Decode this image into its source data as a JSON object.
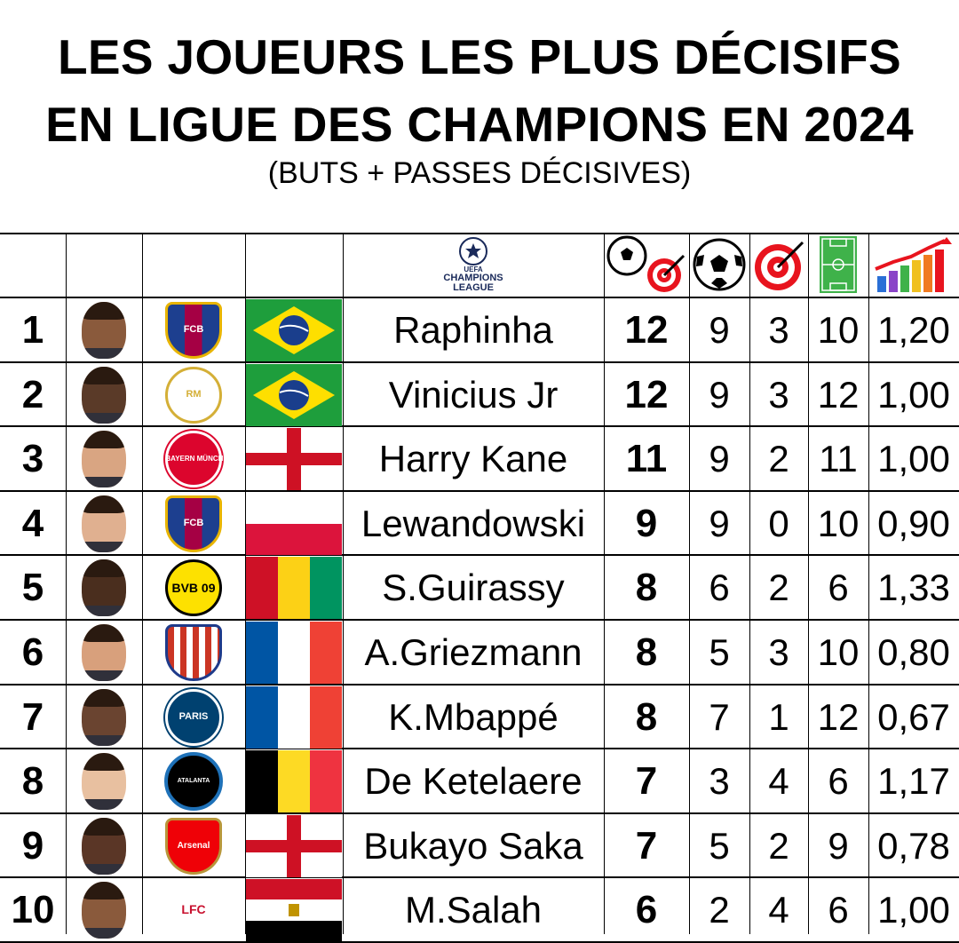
{
  "title": {
    "line1": "LES JOUEURS LES PLUS DÉCISIFS",
    "line2": "EN LIGUE DES CHAMPIONS EN 2024",
    "subtitle": "(BUTS + PASSES DÉCISIVES)"
  },
  "header": {
    "logo_line1": "CHAMPIONS",
    "logo_line2": "LEAGUE",
    "logo_small": "UEFA",
    "col_icons": [
      "ball-target-icon",
      "ball-icon",
      "target-icon",
      "pitch-icon",
      "bar-chart-icon"
    ]
  },
  "rows": [
    {
      "rank": "1",
      "player": "Raphinha",
      "ga": "12",
      "goals": "9",
      "assists": "3",
      "matches": "10",
      "ratio": "1,20",
      "club": "fc-barcelona",
      "club_text": "FCB",
      "flag": "brazil"
    },
    {
      "rank": "2",
      "player": "Vinicius Jr",
      "ga": "12",
      "goals": "9",
      "assists": "3",
      "matches": "12",
      "ratio": "1,00",
      "club": "real-madrid",
      "club_text": "RM",
      "flag": "brazil"
    },
    {
      "rank": "3",
      "player": "Harry Kane",
      "ga": "11",
      "goals": "9",
      "assists": "2",
      "matches": "11",
      "ratio": "1,00",
      "club": "bayern-munchen",
      "club_text": "FC BAYERN MÜNCHEN",
      "flag": "england"
    },
    {
      "rank": "4",
      "player": "Lewandowski",
      "ga": "9",
      "goals": "9",
      "assists": "0",
      "matches": "10",
      "ratio": "0,90",
      "club": "fc-barcelona",
      "club_text": "FCB",
      "flag": "poland"
    },
    {
      "rank": "5",
      "player": "S.Guirassy",
      "ga": "8",
      "goals": "6",
      "assists": "2",
      "matches": "6",
      "ratio": "1,33",
      "club": "borussia-dortmund",
      "club_text": "BVB 09",
      "flag": "guinea"
    },
    {
      "rank": "6",
      "player": "A.Griezmann",
      "ga": "8",
      "goals": "5",
      "assists": "3",
      "matches": "10",
      "ratio": "0,80",
      "club": "atletico-madrid",
      "club_text": "",
      "flag": "france"
    },
    {
      "rank": "7",
      "player": "K.Mbappé",
      "ga": "8",
      "goals": "7",
      "assists": "1",
      "matches": "12",
      "ratio": "0,67",
      "club": "psg-real-madrid",
      "club_text": "PARIS",
      "flag": "france"
    },
    {
      "rank": "8",
      "player": "De Ketelaere",
      "ga": "7",
      "goals": "3",
      "assists": "4",
      "matches": "6",
      "ratio": "1,17",
      "club": "atalanta",
      "club_text": "ATALANTA",
      "flag": "belgium"
    },
    {
      "rank": "9",
      "player": "Bukayo Saka",
      "ga": "7",
      "goals": "5",
      "assists": "2",
      "matches": "9",
      "ratio": "0,78",
      "club": "arsenal",
      "club_text": "Arsenal",
      "flag": "england"
    },
    {
      "rank": "10",
      "player": "M.Salah",
      "ga": "6",
      "goals": "2",
      "assists": "4",
      "matches": "6",
      "ratio": "1,00",
      "club": "liverpool",
      "club_text": "LFC",
      "flag": "egypt"
    }
  ],
  "colors": {
    "brazil_green": "#1e9e3c",
    "brazil_yellow": "#fedf00",
    "brazil_blue": "#1a3e8c",
    "england_red": "#ce1124",
    "poland_red": "#dc143c",
    "guinea_red": "#ce1126",
    "guinea_yellow": "#fcd116",
    "guinea_green": "#009460",
    "france_blue": "#0055a4",
    "france_red": "#ef4135",
    "belgium_black": "#000000",
    "belgium_yellow": "#fdda24",
    "belgium_red": "#ef3340",
    "egypt_red": "#ce1126",
    "egypt_black": "#000000",
    "barca_blue": "#1d3f8f",
    "barca_red": "#a50044",
    "real_gold": "#d4af37",
    "bayern_red": "#dc052d",
    "bvb_yellow": "#fde100",
    "atleti_red": "#cb3524",
    "psg_blue": "#004170",
    "atalanta_blue": "#1e71b8",
    "arsenal_red": "#ef0107",
    "liverpool_red": "#c8102e"
  }
}
